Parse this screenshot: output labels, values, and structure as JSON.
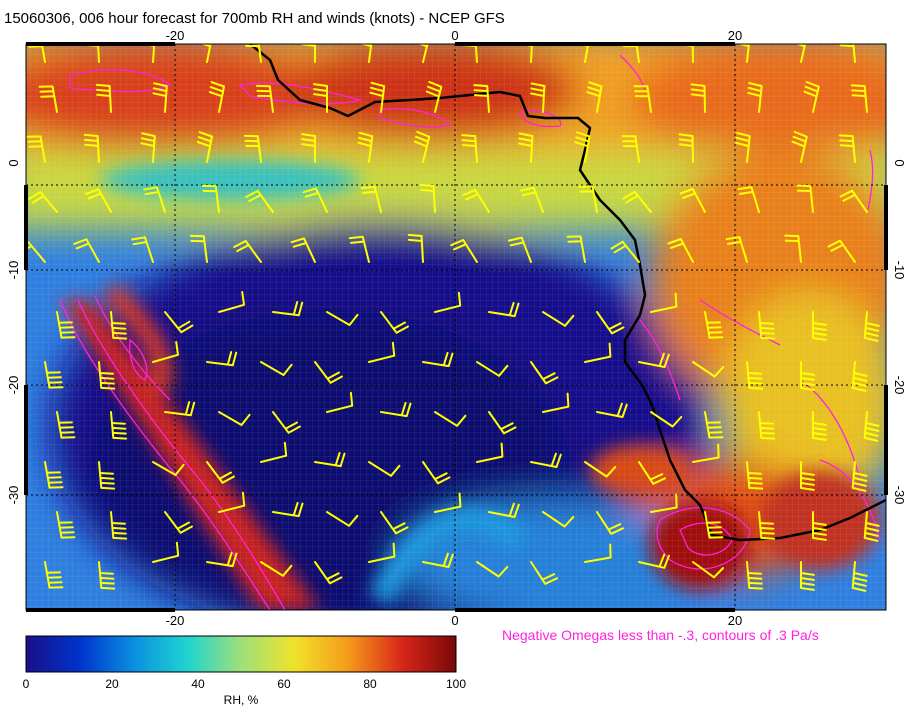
{
  "title": "15060306, 006 hour forecast for 700mb RH and winds (knots) - NCEP GFS",
  "map": {
    "lon_range": [
      -30,
      31
    ],
    "lat_range": [
      -39,
      10
    ],
    "lon_ticks": [
      -20,
      0,
      20
    ],
    "lat_ticks": [
      0,
      -10,
      -20,
      -30
    ],
    "grid": "dotted",
    "coastline_color": "#000000",
    "barb_color": "#ffff00",
    "omega_contour_color": "#ff22dd"
  },
  "omega_note": "Negative Omegas less than -.3, contours of .3 Pa/s",
  "colorbar": {
    "label": "RH, %",
    "range": [
      0,
      100
    ],
    "tick_labels": [
      "0",
      "20",
      "40",
      "60",
      "80",
      "100"
    ],
    "colors": [
      "#1a0f8a",
      "#0033cc",
      "#0a8fe0",
      "#1fd4d0",
      "#9ee07a",
      "#f0e22a",
      "#f59a1a",
      "#d8261a",
      "#7a0808"
    ]
  }
}
